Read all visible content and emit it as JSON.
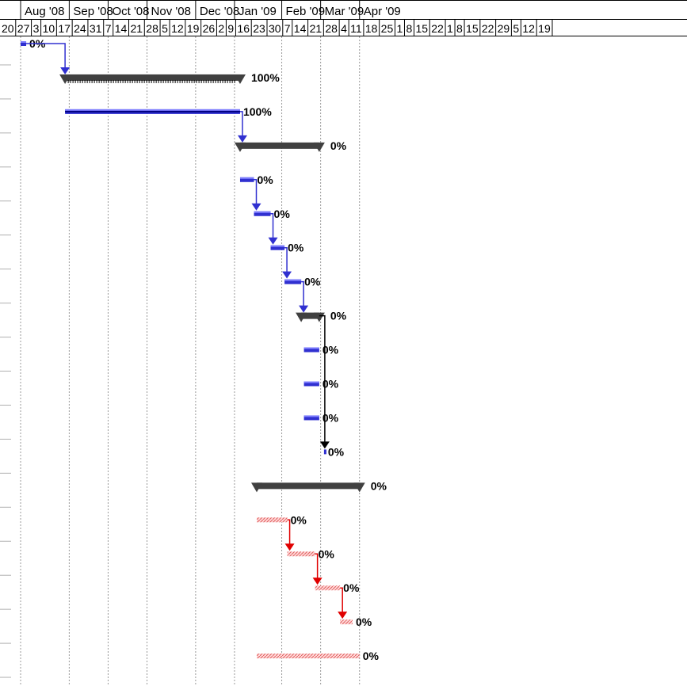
{
  "timescale": {
    "months": [
      "Aug '08",
      "Sep '08",
      "Oct '08",
      "Nov '08",
      "Dec '08",
      "Jan '09",
      "Feb '09",
      "Mar '09",
      "Apr '09"
    ],
    "weeks": [
      "20",
      "27",
      "3",
      "10",
      "17",
      "24",
      "31",
      "7",
      "14",
      "21",
      "28",
      "5",
      "12",
      "19",
      "26",
      "2",
      "9",
      "16",
      "23",
      "30",
      "7",
      "14",
      "21",
      "28",
      "4",
      "11",
      "18",
      "25",
      "1",
      "8",
      "15",
      "22",
      "1",
      "8",
      "15",
      "22",
      "29",
      "5",
      "12",
      "19"
    ]
  },
  "colors": {
    "task": "#3030d0",
    "summary": "#404040",
    "critical": "#e00000",
    "critical_fill": "#f0a8a8",
    "grid": "#999999"
  },
  "tasks": [
    {
      "kind": "task",
      "start": "2008-07-28",
      "finish": "2008-08-01",
      "pct": "0%"
    },
    {
      "kind": "summary",
      "start": "2008-08-29",
      "finish": "2009-01-02",
      "pct": "100%",
      "progress": 1.0
    },
    {
      "kind": "task",
      "start": "2008-08-29",
      "finish": "2009-01-02",
      "pct": "100%",
      "progress": 1.0
    },
    {
      "kind": "summary",
      "start": "2009-01-02",
      "finish": "2009-02-28",
      "pct": "0%"
    },
    {
      "kind": "task",
      "start": "2009-01-02",
      "finish": "2009-01-12",
      "pct": "0%"
    },
    {
      "kind": "task",
      "start": "2009-01-12",
      "finish": "2009-01-24",
      "pct": "0%"
    },
    {
      "kind": "task",
      "start": "2009-01-24",
      "finish": "2009-02-03",
      "pct": "0%"
    },
    {
      "kind": "task",
      "start": "2009-02-03",
      "finish": "2009-02-15",
      "pct": "0%"
    },
    {
      "kind": "summary",
      "start": "2009-02-15",
      "finish": "2009-02-28",
      "pct": "0%"
    },
    {
      "kind": "task",
      "start": "2009-02-17",
      "finish": "2009-02-28",
      "pct": "0%"
    },
    {
      "kind": "task",
      "start": "2009-02-17",
      "finish": "2009-02-28",
      "pct": "0%"
    },
    {
      "kind": "task",
      "start": "2009-02-17",
      "finish": "2009-02-28",
      "pct": "0%"
    },
    {
      "kind": "milestone",
      "start": "2009-03-04",
      "finish": "2009-03-04",
      "pct": "0%"
    },
    {
      "kind": "summary",
      "start": "2009-01-14",
      "finish": "2009-03-29",
      "pct": "0%"
    },
    {
      "kind": "critical",
      "start": "2009-01-14",
      "finish": "2009-02-05",
      "pct": "0%"
    },
    {
      "kind": "critical",
      "start": "2009-02-05",
      "finish": "2009-02-25",
      "pct": "0%"
    },
    {
      "kind": "critical",
      "start": "2009-02-25",
      "finish": "2009-03-15",
      "pct": "0%"
    },
    {
      "kind": "critical",
      "start": "2009-03-15",
      "finish": "2009-03-24",
      "pct": "0%"
    },
    {
      "kind": "critical",
      "start": "2009-01-14",
      "finish": "2009-03-29",
      "pct": "0%"
    }
  ],
  "links": [
    {
      "from": 0,
      "to": 1
    },
    {
      "from": 2,
      "to": 3
    },
    {
      "from": 4,
      "to": 5
    },
    {
      "from": 5,
      "to": 6
    },
    {
      "from": 6,
      "to": 7
    },
    {
      "from": 7,
      "to": 8
    },
    {
      "from": 8,
      "to": 12
    },
    {
      "from": 14,
      "to": 15
    },
    {
      "from": 15,
      "to": 16
    },
    {
      "from": 16,
      "to": 17
    }
  ]
}
